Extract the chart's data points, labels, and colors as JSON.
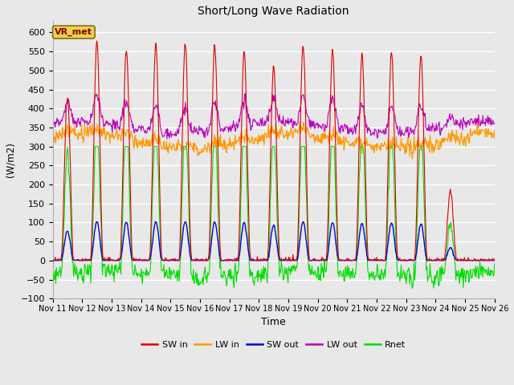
{
  "title": "Short/Long Wave Radiation",
  "ylabel": "(W/m2)",
  "xlabel": "Time",
  "ylim": [
    -100,
    630
  ],
  "background_color": "#e8e8e8",
  "grid_color": "#ffffff",
  "annotation_text": "VR_met",
  "legend_labels": [
    "SW in",
    "LW in",
    "SW out",
    "LW out",
    "Rnet"
  ],
  "legend_colors": [
    "#dd0000",
    "#ff9900",
    "#0000dd",
    "#bb00bb",
    "#00dd00"
  ],
  "xtick_labels": [
    "Nov 11",
    "Nov 12",
    "Nov 13",
    "Nov 14",
    "Nov 15",
    "Nov 16",
    "Nov 17",
    "Nov 18",
    "Nov 19",
    "Nov 20",
    "Nov 21",
    "Nov 22",
    "Nov 23",
    "Nov 24",
    "Nov 25",
    "Nov 26"
  ],
  "n_days": 15,
  "pts_per_day": 48
}
